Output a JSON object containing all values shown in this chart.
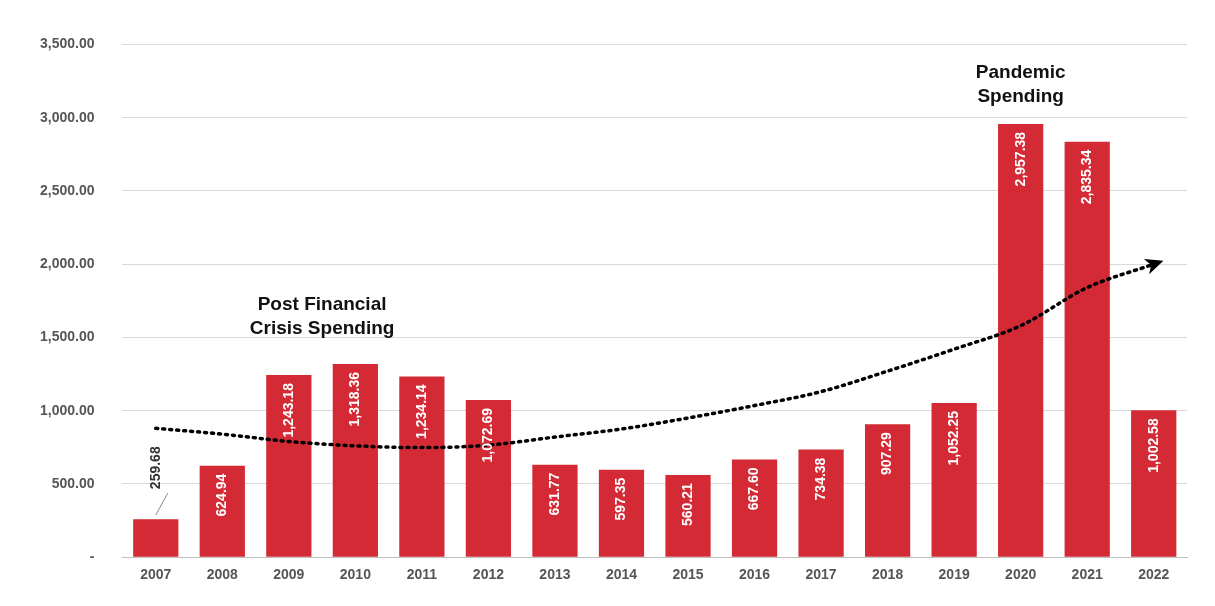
{
  "chart_data": {
    "type": "bar",
    "categories": [
      "2007",
      "2008",
      "2009",
      "2010",
      "2011",
      "2012",
      "2013",
      "2014",
      "2015",
      "2016",
      "2017",
      "2018",
      "2019",
      "2020",
      "2021",
      "2022"
    ],
    "series": [
      {
        "color": "#d42a35",
        "values": [
          259.68,
          624.94,
          1243.18,
          1318.36,
          1234.14,
          1072.69,
          631.77,
          597.35,
          560.21,
          667.6,
          734.38,
          907.29,
          1052.25,
          2957.38,
          2835.34,
          1002.58
        ],
        "value_labels": [
          "259.68",
          "624.94",
          "1,243.18",
          "1,318.36",
          "1,234.14",
          "1,072.69",
          "631.77",
          "597.35",
          "560.21",
          "667.60",
          "734.38",
          "907.29",
          "1,052.25",
          "2,957.38",
          "2,835.34",
          "1,002.58"
        ]
      },
      {
        "type": "line",
        "color": "#000000",
        "line_style": "dotted",
        "marker": "none",
        "values": [
          880,
          840,
          790,
          760,
          748,
          765,
          820,
          875,
          950,
          1035,
          1130,
          1270,
          1420,
          1580,
          1840,
          2000
        ]
      }
    ],
    "ylim": [
      0,
      3500
    ],
    "yticks": [
      {
        "value": 0,
        "label": "-"
      },
      {
        "value": 500,
        "label": "500.00"
      },
      {
        "value": 1000,
        "label": "1,000.00"
      },
      {
        "value": 1500,
        "label": "1,500.00"
      },
      {
        "value": 2000,
        "label": "2,000.00"
      },
      {
        "value": 2500,
        "label": "2,500.00"
      },
      {
        "value": 3000,
        "label": "3,000.00"
      },
      {
        "value": 3500,
        "label": "3,500.00"
      }
    ],
    "grid": "y",
    "legend": false,
    "annotations": [
      "Post Financial Crisis Spending",
      "Pandemic Spending"
    ]
  }
}
